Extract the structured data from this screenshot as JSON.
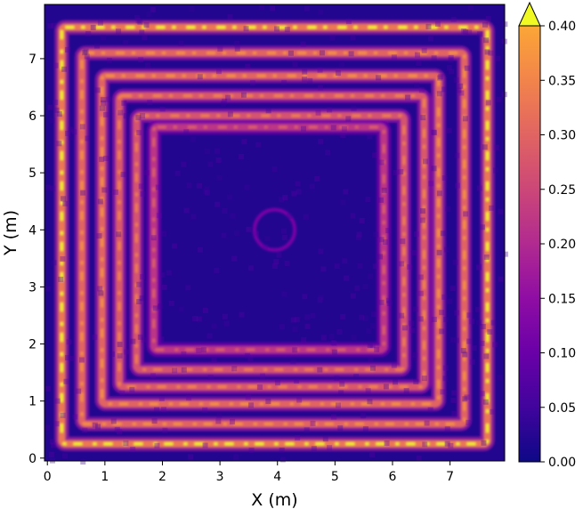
{
  "chart_data": {
    "type": "heatmap",
    "title": "",
    "xlabel": "X (m)",
    "ylabel": "Y (m)",
    "xlim": [
      -0.05,
      7.95
    ],
    "ylim": [
      -0.05,
      7.95
    ],
    "xticks": [
      "0",
      "1",
      "2",
      "3",
      "4",
      "5",
      "6",
      "7"
    ],
    "yticks": [
      "0",
      "1",
      "2",
      "3",
      "4",
      "5",
      "6",
      "7"
    ],
    "colormap": "plasma",
    "colorbar": {
      "vmin": 0.0,
      "vmax": 0.4,
      "extend": "max",
      "ticks": [
        "0.00",
        "0.05",
        "0.10",
        "0.15",
        "0.20",
        "0.25",
        "0.30",
        "0.35",
        "0.40"
      ]
    },
    "background_value": 0.02,
    "square_rings": [
      {
        "x0": 0.25,
        "x1": 7.65,
        "y0": 0.25,
        "y1": 7.55,
        "value": 0.33
      },
      {
        "x0": 0.6,
        "x1": 7.25,
        "y0": 0.6,
        "y1": 7.1,
        "value": 0.3
      },
      {
        "x0": 0.95,
        "x1": 6.8,
        "y0": 0.95,
        "y1": 6.7,
        "value": 0.3
      },
      {
        "x0": 1.25,
        "x1": 6.55,
        "y0": 1.25,
        "y1": 6.35,
        "value": 0.28
      },
      {
        "x0": 1.55,
        "x1": 6.2,
        "y0": 1.55,
        "y1": 6.0,
        "value": 0.27
      },
      {
        "x0": 1.85,
        "x1": 5.85,
        "y0": 1.9,
        "y1": 5.8,
        "value": 0.22
      }
    ],
    "circle": {
      "cx": 3.95,
      "cy": 4.0,
      "r": 0.35,
      "value": 0.12
    }
  }
}
